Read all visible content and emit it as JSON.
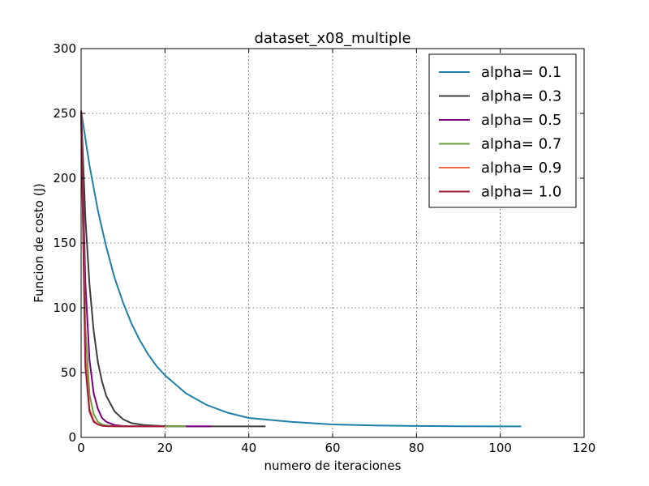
{
  "chart_data": {
    "type": "line",
    "title": "dataset_x08_multiple",
    "xlabel": "numero de iteraciones",
    "ylabel": "Funcion de costo (J)",
    "xlim": [
      0,
      120
    ],
    "ylim": [
      0,
      300
    ],
    "xticks": [
      "0",
      "20",
      "40",
      "60",
      "80",
      "100",
      "120"
    ],
    "yticks": [
      "0",
      "50",
      "100",
      "150",
      "200",
      "250",
      "300"
    ],
    "grid": true,
    "legend_position": "top-right",
    "series": [
      {
        "name": "alpha= 0.1",
        "color": "#1f7fa8",
        "x": [
          0,
          2,
          4,
          6,
          8,
          10,
          12,
          14,
          16,
          18,
          20,
          25,
          30,
          35,
          40,
          50,
          60,
          70,
          80,
          90,
          100,
          105
        ],
        "y": [
          252,
          210,
          175,
          147,
          123,
          104,
          88,
          75,
          64,
          55,
          48,
          34,
          25,
          19,
          15,
          12,
          10,
          9.2,
          8.8,
          8.6,
          8.5,
          8.5
        ]
      },
      {
        "name": "alpha= 0.3",
        "color": "#3d3d3d",
        "x": [
          0,
          1,
          2,
          3,
          4,
          5,
          6,
          8,
          10,
          12,
          15,
          20,
          25,
          30,
          35,
          40,
          44
        ],
        "y": [
          252,
          170,
          118,
          82,
          58,
          43,
          32,
          20,
          14,
          11,
          9.5,
          8.7,
          8.5,
          8.5,
          8.5,
          8.5,
          8.5
        ]
      },
      {
        "name": "alpha= 0.5",
        "color": "#7a007f",
        "x": [
          0,
          1,
          2,
          3,
          4,
          5,
          6,
          8,
          10,
          12,
          15,
          20,
          25,
          31
        ],
        "y": [
          252,
          120,
          60,
          34,
          22,
          15,
          12,
          9.5,
          8.8,
          8.6,
          8.5,
          8.5,
          8.5,
          8.5
        ]
      },
      {
        "name": "alpha= 0.7",
        "color": "#6a9e3a",
        "x": [
          0,
          1,
          2,
          3,
          4,
          5,
          6,
          8,
          10,
          12,
          15,
          20,
          25
        ],
        "y": [
          252,
          85,
          33,
          18,
          12,
          10,
          9.2,
          8.7,
          8.6,
          8.5,
          8.5,
          8.5,
          8.5
        ]
      },
      {
        "name": "alpha= 0.9",
        "color": "#f06a4a",
        "x": [
          0,
          1,
          2,
          3,
          4,
          5,
          6,
          8,
          10,
          12,
          15,
          20
        ],
        "y": [
          252,
          62,
          22,
          13,
          10,
          9,
          8.7,
          8.6,
          8.5,
          8.5,
          8.5,
          8.5
        ]
      },
      {
        "name": "alpha= 1.0",
        "color": "#9e1b3a",
        "x": [
          0,
          1,
          2,
          3,
          4,
          5,
          6,
          8,
          10,
          12,
          15,
          20
        ],
        "y": [
          252,
          55,
          20,
          12,
          10,
          9,
          8.7,
          8.6,
          8.5,
          8.5,
          8.5,
          8.5
        ]
      }
    ]
  }
}
